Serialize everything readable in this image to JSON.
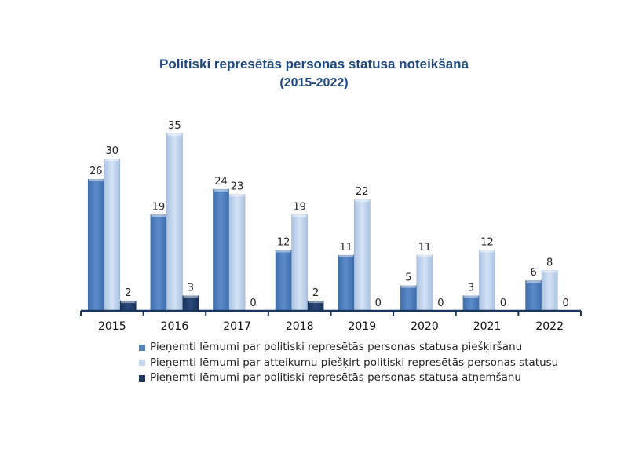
{
  "chart_data": {
    "type": "bar",
    "title": "Politiski represētās personas statusa noteikšana",
    "subtitle": "(2015-2022)",
    "xlabel": "",
    "ylabel": "",
    "ylim": [
      0,
      35
    ],
    "grid": false,
    "legend_position": "bottom",
    "categories": [
      "2015",
      "2016",
      "2017",
      "2018",
      "2019",
      "2020",
      "2021",
      "2022"
    ],
    "series": [
      {
        "name": "Pieņemti lēmumi par politiski represētās personas statusa piešķiršanu",
        "color": "#4f81bd",
        "values": [
          26,
          19,
          24,
          12,
          11,
          5,
          3,
          6
        ]
      },
      {
        "name": "Pieņemti lēmumi par atteikumu piešķirt politiski represētās personas statusu",
        "color": "#c6d9f1",
        "values": [
          30,
          35,
          23,
          19,
          22,
          11,
          12,
          8
        ]
      },
      {
        "name": "Pieņemti lēmumi par politiski represētās personas statusa atņemšanu",
        "color": "#1f3864",
        "values": [
          2,
          3,
          0,
          2,
          0,
          0,
          0,
          0
        ]
      }
    ]
  },
  "colors": {
    "title": "#1f497d",
    "axis": "#17375e"
  }
}
